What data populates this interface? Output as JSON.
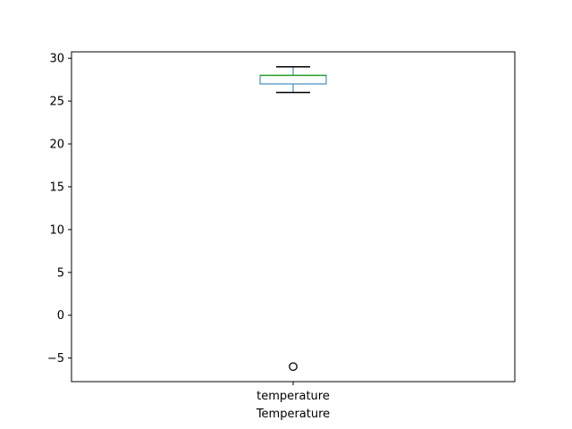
{
  "chart_data": {
    "type": "box",
    "xlabel": "Temperature",
    "ylabel": "",
    "title": "",
    "categories": [
      "temperature"
    ],
    "ylim": [
      -7.75,
      30.75
    ],
    "yticks": [
      -5,
      0,
      5,
      10,
      15,
      20,
      25,
      30
    ],
    "ytick_labels": [
      "−5",
      "0",
      "5",
      "10",
      "15",
      "20",
      "25",
      "30"
    ],
    "grid": false,
    "boxes": [
      {
        "name": "temperature",
        "whisker_low": 26,
        "q1": 27,
        "median": 28,
        "q3": 28,
        "whisker_high": 29,
        "outliers": [
          -6
        ]
      }
    ],
    "colors": {
      "box": "#1f77b4",
      "median": "#2ca02c",
      "whisker_cap": "#000000",
      "outlier": "#000000"
    }
  }
}
